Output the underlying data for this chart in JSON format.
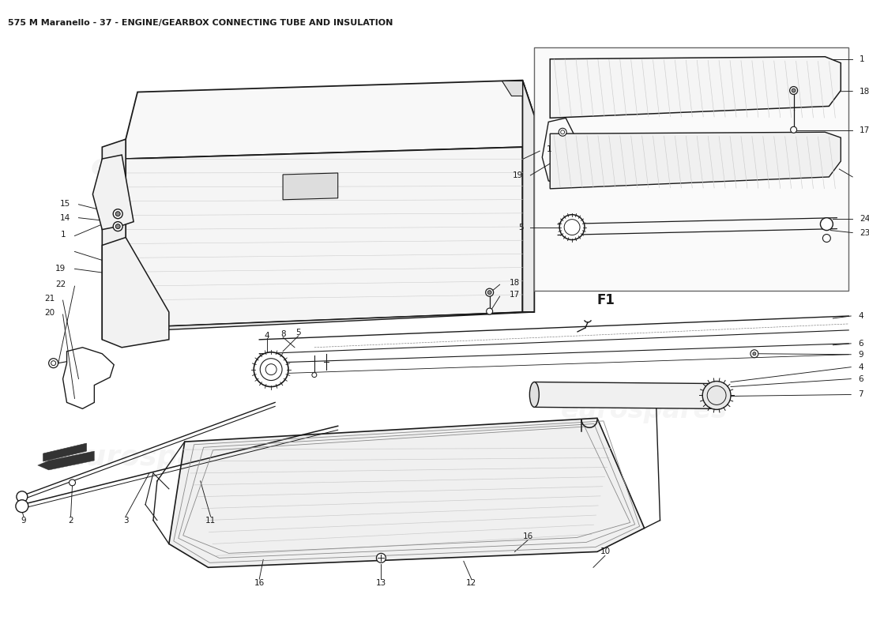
{
  "title": "575 M Maranello - 37 - ENGINE/GEARBOX CONNECTING TUBE AND INSULATION",
  "title_fontsize": 8,
  "background_color": "#ffffff",
  "watermark_text": "eurospares",
  "watermark_color": "#d8d8d8",
  "f1_label": "F1",
  "line_color": "#1a1a1a",
  "light_line": "#888888",
  "hatch_color": "#cccccc"
}
